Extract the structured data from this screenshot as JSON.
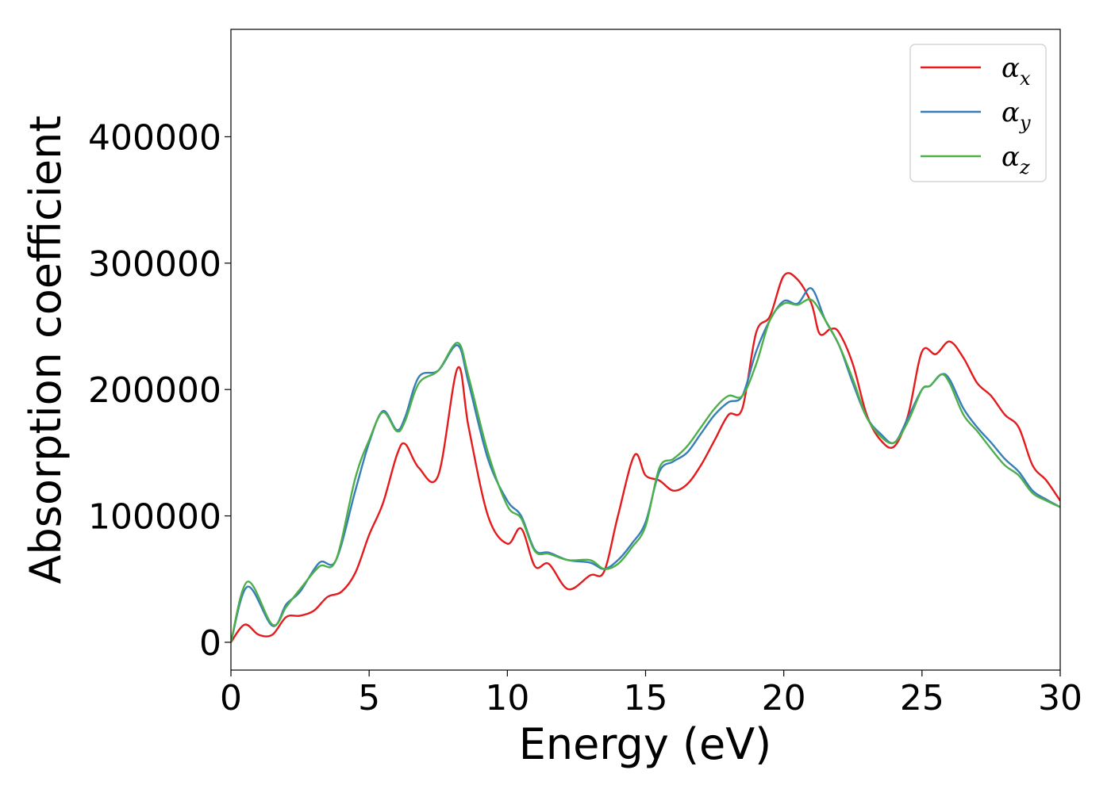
{
  "chart_data": {
    "type": "line",
    "title": "",
    "xlabel": "Energy (eV)",
    "ylabel": "Absorption coefficient",
    "xlim": [
      0,
      30
    ],
    "ylim": [
      -22000,
      485000
    ],
    "xticks": [
      0,
      5,
      10,
      15,
      20,
      25,
      30
    ],
    "yticks": [
      0,
      100000,
      200000,
      300000,
      400000
    ],
    "grid": false,
    "legend_position": "top-right",
    "series": [
      {
        "name": "α",
        "subscript": "x",
        "color": "#e41a1c",
        "x": [
          0,
          0.5,
          1,
          1.5,
          2,
          2.5,
          3,
          3.5,
          4,
          4.5,
          5,
          5.5,
          6,
          6.3,
          6.8,
          7.5,
          8.2,
          8.6,
          9.3,
          10,
          10.5,
          11,
          11.5,
          12.2,
          13,
          13.5,
          14,
          14.6,
          15,
          15.5,
          16,
          16.5,
          17,
          17.5,
          18,
          18.5,
          19,
          19.5,
          20,
          20.5,
          21,
          21.3,
          21.7,
          22,
          22.5,
          23,
          23.5,
          24,
          24.5,
          25,
          25.5,
          26,
          26.5,
          27,
          27.5,
          28,
          28.5,
          29,
          29.5,
          30
        ],
        "y": [
          0,
          14000,
          6000,
          6000,
          20000,
          21000,
          25000,
          36000,
          40000,
          55000,
          85000,
          110000,
          148000,
          157000,
          138000,
          132000,
          217000,
          170000,
          100000,
          78000,
          90000,
          60000,
          62000,
          42000,
          53000,
          56000,
          100000,
          148000,
          132000,
          128000,
          120000,
          125000,
          140000,
          160000,
          180000,
          185000,
          245000,
          258000,
          290000,
          287000,
          268000,
          244000,
          248000,
          245000,
          220000,
          180000,
          160000,
          155000,
          180000,
          230000,
          228000,
          238000,
          225000,
          205000,
          195000,
          180000,
          170000,
          140000,
          128000,
          112000
        ]
      },
      {
        "name": "α",
        "subscript": "y",
        "color": "#377eb8",
        "x": [
          0,
          0.6,
          1.5,
          2,
          2.5,
          3.2,
          3.8,
          4.5,
          5,
          5.5,
          6,
          6.3,
          6.8,
          7.5,
          8.2,
          8.6,
          9.3,
          10,
          10.5,
          11,
          11.5,
          12.2,
          13,
          13.5,
          14,
          14.5,
          15,
          15.5,
          16,
          16.5,
          17,
          17.5,
          18,
          18.5,
          19,
          19.5,
          20,
          20.5,
          21,
          21.5,
          22,
          22.5,
          23,
          23.5,
          24,
          24.5,
          25,
          25.3,
          25.7,
          26,
          26.5,
          27,
          27.5,
          28,
          28.5,
          29,
          29.5,
          30
        ],
        "y": [
          0,
          44000,
          13000,
          30000,
          40000,
          63000,
          65000,
          120000,
          158000,
          183000,
          168000,
          178000,
          210000,
          215000,
          235000,
          205000,
          145000,
          112000,
          100000,
          73000,
          71000,
          65000,
          63000,
          58000,
          65000,
          78000,
          95000,
          135000,
          143000,
          150000,
          165000,
          180000,
          190000,
          195000,
          230000,
          255000,
          270000,
          268000,
          280000,
          255000,
          235000,
          205000,
          178000,
          165000,
          158000,
          178000,
          200000,
          203000,
          212000,
          208000,
          185000,
          170000,
          158000,
          145000,
          135000,
          120000,
          113000,
          107000
        ]
      },
      {
        "name": "α",
        "subscript": "z",
        "color": "#4daf4a",
        "x": [
          0,
          0.6,
          1.5,
          2,
          2.5,
          3.2,
          3.8,
          4.5,
          5,
          5.5,
          6,
          6.3,
          6.8,
          7.5,
          8.2,
          8.6,
          9.3,
          10,
          10.5,
          11,
          11.5,
          12.2,
          13,
          13.5,
          14,
          14.5,
          15,
          15.5,
          16,
          16.5,
          17,
          17.5,
          18,
          18.5,
          19,
          19.5,
          20,
          20.5,
          21,
          21.5,
          22,
          22.5,
          23,
          23.5,
          24,
          24.5,
          25,
          25.3,
          25.7,
          26,
          26.5,
          27,
          27.5,
          28,
          28.5,
          29,
          29.5,
          30
        ],
        "y": [
          0,
          48000,
          14000,
          28000,
          42000,
          60000,
          65000,
          130000,
          160000,
          182000,
          167000,
          175000,
          205000,
          215000,
          237000,
          210000,
          150000,
          108000,
          98000,
          72000,
          70000,
          65000,
          65000,
          58000,
          62000,
          75000,
          92000,
          138000,
          145000,
          155000,
          170000,
          185000,
          195000,
          195000,
          220000,
          255000,
          268000,
          267000,
          271000,
          255000,
          235000,
          208000,
          178000,
          163000,
          158000,
          175000,
          200000,
          203000,
          212000,
          205000,
          180000,
          167000,
          153000,
          140000,
          132000,
          118000,
          112000,
          107000
        ]
      }
    ]
  }
}
